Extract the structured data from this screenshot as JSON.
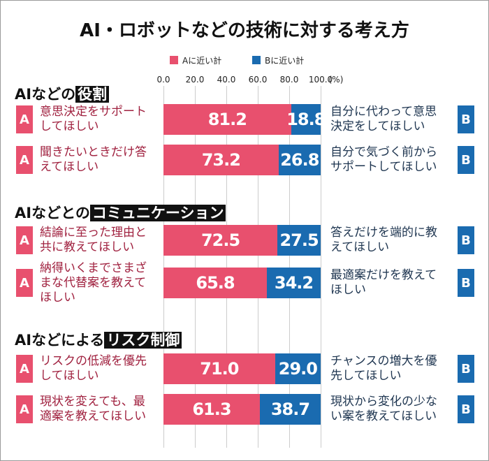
{
  "chart_data": {
    "type": "bar",
    "orientation": "horizontal",
    "stacked": true,
    "title": "AI・ロボットなどの技術に対する考え方",
    "series": [
      {
        "name": "Aに近い計",
        "color": "#e8506e",
        "values": [
          81.2,
          73.2,
          72.5,
          65.8,
          71.0,
          61.3
        ],
        "value_labels": [
          "81.2",
          "73.2",
          "72.5",
          "65.8",
          "71.0",
          "61.3"
        ]
      },
      {
        "name": "Bに近い計",
        "color": "#1a6bb0",
        "values": [
          18.8,
          26.8,
          27.5,
          34.2,
          29.0,
          38.7
        ],
        "value_labels": [
          "18.8",
          "26.8",
          "27.5",
          "34.2",
          "29.0",
          "38.7"
        ]
      }
    ],
    "xlim": [
      0,
      100
    ],
    "xticks": [
      {
        "value": 0,
        "label": "0.0"
      },
      {
        "value": 20,
        "label": "20.0"
      },
      {
        "value": 40,
        "label": "40.0"
      },
      {
        "value": 60,
        "label": "60.0"
      },
      {
        "value": 80,
        "label": "80.0"
      },
      {
        "value": 100,
        "label": "100.0"
      }
    ],
    "x_unit": "(%)",
    "grid": true,
    "badge_a": "A",
    "badge_b": "B",
    "groups": [
      {
        "label": "AIなどの",
        "highlight": "役割",
        "a_labels": [
          "意思決定をサポートしてほしい",
          "聞きたいときだけ答えてほしい"
        ],
        "b_labels": [
          "自分に代わって意思決定をしてほしい",
          "自分で気づく前からサポートしてほしい"
        ]
      },
      {
        "label": "AIなどとの",
        "highlight": "コミュニケーション",
        "a_labels": [
          "結論に至った理由と共に教えてほしい",
          "納得いくまでさまざまな代替案を教えてほしい"
        ],
        "b_labels": [
          "答えだけを端的に教えてほしい",
          "最適案だけを教えてほしい"
        ]
      },
      {
        "label": "AIなどによる",
        "highlight": "リスク制御",
        "a_labels": [
          "リスクの低減を優先してほしい",
          "現状を変えても、最適案を教えてほしい"
        ],
        "b_labels": [
          "チャンスの増大を優先してほしい",
          "現状から変化の少ない案を教えてほしい"
        ]
      }
    ]
  }
}
